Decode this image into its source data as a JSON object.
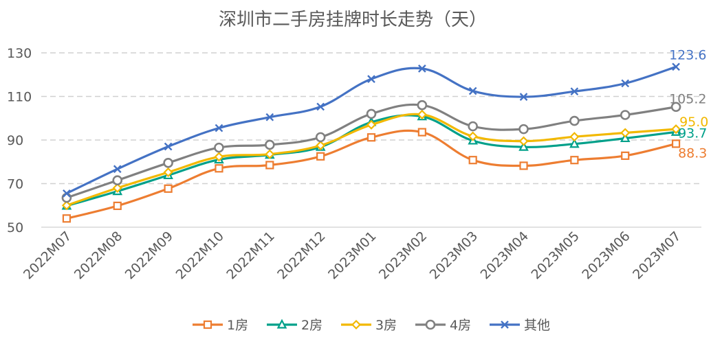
{
  "chart_data": {
    "type": "line",
    "title": "深圳市二手房挂牌时长走势（天）",
    "xlabel": "",
    "ylabel": "",
    "ylim": [
      50,
      130
    ],
    "yticks": [
      50,
      70,
      90,
      110,
      130
    ],
    "grid": true,
    "legend_position": "bottom",
    "categories": [
      "2022M07",
      "2022M08",
      "2022M09",
      "2022M10",
      "2022M11",
      "2022M12",
      "2023M01",
      "2023M02",
      "2023M03",
      "2023M04",
      "2023M05",
      "2023M06",
      "2023M07"
    ],
    "series": [
      {
        "name": "1房",
        "color": "#ED7D31",
        "marker": "square",
        "values": [
          54.0,
          59.8,
          67.7,
          77.0,
          78.5,
          82.5,
          91.2,
          93.6,
          80.8,
          78.2,
          80.8,
          82.8,
          88.3
        ],
        "end_label": "88.3"
      },
      {
        "name": "2房",
        "color": "#00A08A",
        "marker": "triangle",
        "values": [
          59.8,
          66.5,
          73.8,
          81.0,
          83.2,
          86.8,
          98.2,
          100.8,
          89.7,
          86.8,
          88.2,
          90.8,
          93.7
        ],
        "end_label": "93.7"
      },
      {
        "name": "3房",
        "color": "#F2B800",
        "marker": "diamond",
        "values": [
          60.0,
          68.0,
          75.2,
          82.3,
          83.5,
          87.5,
          97.0,
          101.7,
          91.7,
          89.5,
          91.5,
          93.3,
          95.0
        ],
        "end_label": "95.0"
      },
      {
        "name": "4房",
        "color": "#808080",
        "marker": "circle",
        "values": [
          63.5,
          71.5,
          79.5,
          86.5,
          87.8,
          91.3,
          102.0,
          106.0,
          96.3,
          95.0,
          98.8,
          101.5,
          105.2
        ],
        "end_label": "105.2"
      },
      {
        "name": "其他",
        "color": "#4472C4",
        "marker": "x",
        "values": [
          65.5,
          76.7,
          87.0,
          95.5,
          100.5,
          105.3,
          118.0,
          122.8,
          112.5,
          109.8,
          112.3,
          116.0,
          123.6
        ],
        "end_label": "123.6"
      }
    ]
  }
}
